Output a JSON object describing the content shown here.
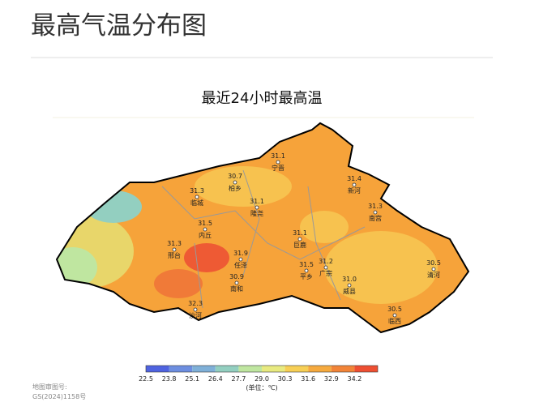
{
  "header": {
    "title": "最高气温分布图"
  },
  "map": {
    "subtitle": "最近24小时最高温",
    "stations": [
      {
        "name": "宁晋",
        "value": "31.1"
      },
      {
        "name": "柏乡",
        "value": "30.7"
      },
      {
        "name": "临城",
        "value": "31.3"
      },
      {
        "name": "新河",
        "value": "31.4"
      },
      {
        "name": "隆尧",
        "value": "31.1"
      },
      {
        "name": "南宫",
        "value": "31.3"
      },
      {
        "name": "内丘",
        "value": "31.5"
      },
      {
        "name": "巨鹿",
        "value": "31.1"
      },
      {
        "name": "邢台",
        "value": "31.3"
      },
      {
        "name": "任泽",
        "value": "31.9"
      },
      {
        "name": "平乡",
        "value": "31.5"
      },
      {
        "name": "广宗",
        "value": "31.2"
      },
      {
        "name": "清河",
        "value": "30.5"
      },
      {
        "name": "南和",
        "value": "30.9"
      },
      {
        "name": "威县",
        "value": "31.0"
      },
      {
        "name": "沙河",
        "value": "32.3"
      },
      {
        "name": "临西",
        "value": "30.5"
      }
    ],
    "legend": {
      "ticks": [
        "22.5",
        "23.8",
        "25.1",
        "26.4",
        "27.7",
        "29.0",
        "30.3",
        "31.6",
        "32.9",
        "34.2"
      ],
      "colors": [
        "#4f63e0",
        "#6d8ee0",
        "#7fb0d8",
        "#93cfc0",
        "#bfe6a0",
        "#e8ea80",
        "#f7cf55",
        "#f6aa3e",
        "#f28438",
        "#ee4f32"
      ],
      "unit": "(单位：℃)"
    },
    "credit": [
      "地图审图号:",
      "GS(2024)1158号"
    ]
  }
}
